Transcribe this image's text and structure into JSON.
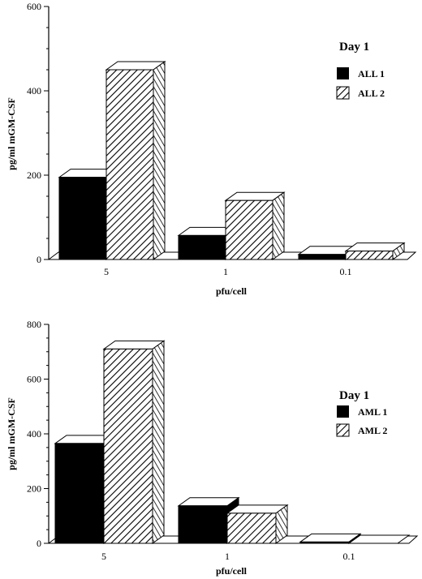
{
  "chart_data": [
    {
      "type": "bar",
      "categories": [
        "5",
        "1",
        "0.1"
      ],
      "series": [
        {
          "name": "ALL 1",
          "values": [
            195,
            57,
            12
          ],
          "fill": "solid"
        },
        {
          "name": "ALL 2",
          "values": [
            450,
            140,
            20
          ],
          "fill": "hatch"
        }
      ],
      "xlabel": "pfu/cell",
      "ylabel": "pg/ml mGM-CSF",
      "ylim": [
        0,
        600
      ],
      "yticks": [
        0,
        200,
        400,
        600
      ],
      "legend_title": "Day 1",
      "legend_position": "top-right",
      "grid": false,
      "colors": {
        "solid": "#000000",
        "hatch_line": "#000000",
        "background": "#ffffff"
      }
    },
    {
      "type": "bar",
      "categories": [
        "5",
        "1",
        "0.1"
      ],
      "series": [
        {
          "name": "AML 1",
          "values": [
            365,
            137,
            5
          ],
          "fill": "solid"
        },
        {
          "name": "AML 2",
          "values": [
            710,
            110,
            0
          ],
          "fill": "hatch"
        }
      ],
      "xlabel": "pfu/cell",
      "ylabel": "pg/ml mGM-CSF",
      "ylim": [
        0,
        800
      ],
      "yticks": [
        0,
        200,
        400,
        600,
        800
      ],
      "legend_title": "Day 1",
      "legend_position": "middle-right",
      "grid": false,
      "colors": {
        "solid": "#000000",
        "hatch_line": "#000000",
        "background": "#ffffff"
      }
    }
  ]
}
